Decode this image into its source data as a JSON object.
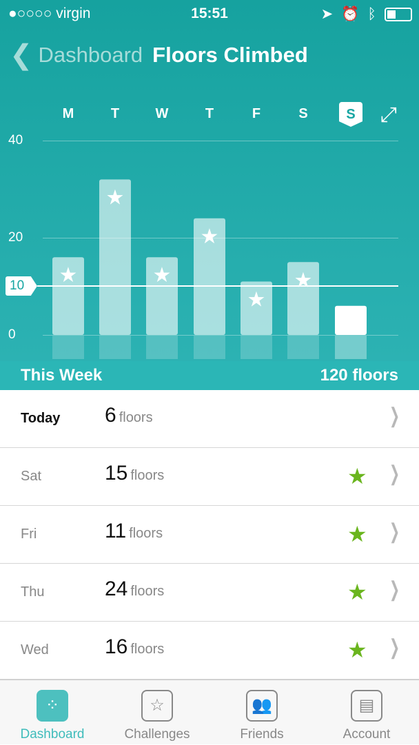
{
  "status": {
    "carrier": "●○○○○ virgin",
    "time": "15:51"
  },
  "nav": {
    "back_label": "Dashboard",
    "title": "Floors Climbed"
  },
  "colors": {
    "accent": "#18a6a3",
    "goal_star": "#6ab51e"
  },
  "chart_data": {
    "type": "bar",
    "categories": [
      "M",
      "T",
      "W",
      "T",
      "F",
      "S",
      "S"
    ],
    "values": [
      16,
      32,
      16,
      24,
      11,
      15,
      6
    ],
    "goal_met": [
      true,
      true,
      true,
      true,
      true,
      true,
      false
    ],
    "selected": "S",
    "ylim": [
      0,
      40
    ],
    "yticks": [
      "0",
      "20",
      "40"
    ],
    "goal": 10,
    "goal_label": "10"
  },
  "summary": {
    "label": "This Week",
    "total": "120 floors"
  },
  "rows": [
    {
      "day": "Today",
      "value": "6",
      "unit": "floors",
      "star": false
    },
    {
      "day": "Sat",
      "value": "15",
      "unit": "floors",
      "star": true
    },
    {
      "day": "Fri",
      "value": "11",
      "unit": "floors",
      "star": true
    },
    {
      "day": "Thu",
      "value": "24",
      "unit": "floors",
      "star": true
    },
    {
      "day": "Wed",
      "value": "16",
      "unit": "floors",
      "star": true
    }
  ],
  "tabs": [
    {
      "label": "Dashboard",
      "icon": "fitbit-dots-icon"
    },
    {
      "label": "Challenges",
      "icon": "shield-star-icon"
    },
    {
      "label": "Friends",
      "icon": "people-icon"
    },
    {
      "label": "Account",
      "icon": "id-card-icon"
    }
  ]
}
